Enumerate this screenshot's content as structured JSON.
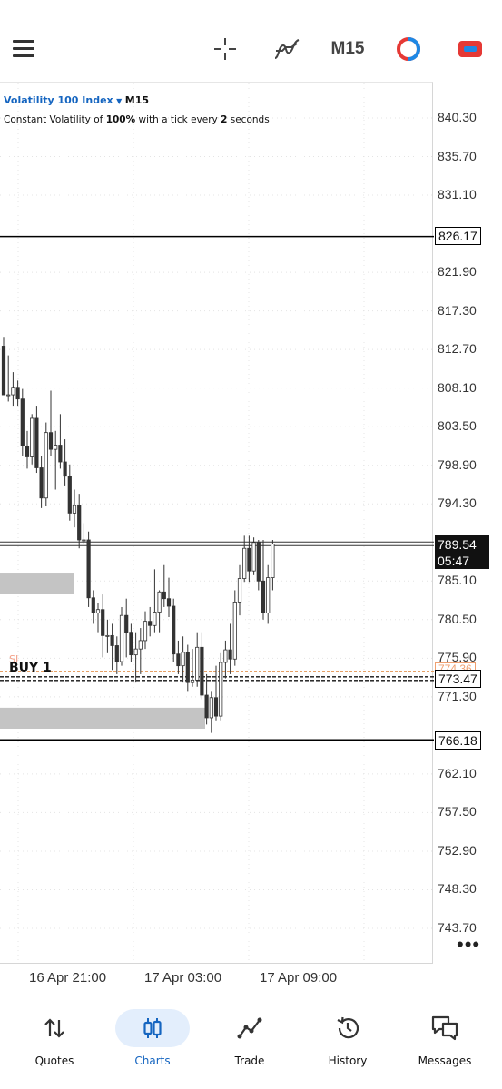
{
  "toolbar": {
    "timeframe": "M15",
    "icons": [
      "menu-icon",
      "crosshair-icon",
      "indicators-icon",
      "one-click-trading-icon",
      "toggle-icon"
    ]
  },
  "chart": {
    "symbol": "Volatility 100 Index",
    "symbol_arrow": "▼",
    "timeframe": "M15",
    "description_prefix": "Constant Volatility of ",
    "description_pct": "100%",
    "description_mid": " with a tick every ",
    "description_num": "2",
    "description_suffix": " seconds",
    "price_labels": [
      "840.30",
      "835.70",
      "831.10",
      "821.90",
      "817.30",
      "812.70",
      "808.10",
      "803.50",
      "798.90",
      "794.30",
      "785.10",
      "780.50",
      "775.90",
      "771.30",
      "762.10",
      "757.50",
      "752.90",
      "748.30",
      "743.70"
    ],
    "level_high": "826.17",
    "level_low": "766.18",
    "current_price": "789.54",
    "countdown": "05:47",
    "position_price": "773.47",
    "sl_price": "774.36",
    "position_label": "BUY 1",
    "sl_label": "SL",
    "time_labels": [
      "16 Apr 21:00",
      "17 Apr 03:00",
      "17 Apr 09:00"
    ],
    "more": "•••"
  },
  "colors": {
    "accent": "#1565c0",
    "bull_body": "#ffffff",
    "bear_body": "#333333",
    "sl_line": "#e6a065",
    "zone": "#c4c4c4"
  },
  "chart_data": {
    "type": "candlestick",
    "ylim": [
      741.4,
      842.6
    ],
    "candles": [
      {
        "o": 813.1,
        "h": 814.2,
        "l": 807.3,
        "c": 807.3
      },
      {
        "o": 807.3,
        "h": 812.0,
        "l": 806.5,
        "c": 807.3
      },
      {
        "o": 807.3,
        "h": 810.0,
        "l": 806.0,
        "c": 808.2
      },
      {
        "o": 808.2,
        "h": 809.0,
        "l": 806.0,
        "c": 806.8
      },
      {
        "o": 806.8,
        "h": 808.0,
        "l": 800.0,
        "c": 801.2
      },
      {
        "o": 801.2,
        "h": 803.0,
        "l": 798.5,
        "c": 799.9
      },
      {
        "o": 799.9,
        "h": 805.0,
        "l": 799.0,
        "c": 804.5
      },
      {
        "o": 804.5,
        "h": 806.0,
        "l": 798.0,
        "c": 798.6
      },
      {
        "o": 798.6,
        "h": 800.0,
        "l": 793.8,
        "c": 795.0
      },
      {
        "o": 795.0,
        "h": 804.0,
        "l": 794.0,
        "c": 802.8
      },
      {
        "o": 802.8,
        "h": 807.8,
        "l": 800.0,
        "c": 800.8
      },
      {
        "o": 800.8,
        "h": 803.0,
        "l": 796.0,
        "c": 801.3
      },
      {
        "o": 801.3,
        "h": 805.0,
        "l": 798.5,
        "c": 799.3
      },
      {
        "o": 799.3,
        "h": 802.0,
        "l": 796.5,
        "c": 797.6
      },
      {
        "o": 797.6,
        "h": 799.0,
        "l": 792.3,
        "c": 793.2
      },
      {
        "o": 793.2,
        "h": 796.0,
        "l": 791.5,
        "c": 794.1
      },
      {
        "o": 794.1,
        "h": 795.5,
        "l": 789.0,
        "c": 790.0
      },
      {
        "o": 790.0,
        "h": 792.0,
        "l": 789.5,
        "c": 790.0
      },
      {
        "o": 790.0,
        "h": 791.0,
        "l": 782.0,
        "c": 783.1
      },
      {
        "o": 783.1,
        "h": 784.0,
        "l": 780.0,
        "c": 781.3
      },
      {
        "o": 781.3,
        "h": 782.5,
        "l": 779.0,
        "c": 781.7
      },
      {
        "o": 781.7,
        "h": 783.5,
        "l": 776.0,
        "c": 778.6
      },
      {
        "o": 778.6,
        "h": 780.5,
        "l": 776.5,
        "c": 778.6
      },
      {
        "o": 778.6,
        "h": 780.0,
        "l": 774.5,
        "c": 777.4
      },
      {
        "o": 777.4,
        "h": 778.5,
        "l": 774.0,
        "c": 775.5
      },
      {
        "o": 775.5,
        "h": 782.0,
        "l": 775.0,
        "c": 781.0
      },
      {
        "o": 781.0,
        "h": 783.0,
        "l": 776.0,
        "c": 779.0
      },
      {
        "o": 779.0,
        "h": 780.0,
        "l": 775.5,
        "c": 776.3
      },
      {
        "o": 776.3,
        "h": 779.0,
        "l": 773.0,
        "c": 777.0
      },
      {
        "o": 777.0,
        "h": 779.5,
        "l": 774.0,
        "c": 778.0
      },
      {
        "o": 778.0,
        "h": 781.5,
        "l": 777.0,
        "c": 780.3
      },
      {
        "o": 780.3,
        "h": 782.0,
        "l": 778.5,
        "c": 779.8
      },
      {
        "o": 779.8,
        "h": 786.5,
        "l": 779.0,
        "c": 781.4
      },
      {
        "o": 781.4,
        "h": 784.0,
        "l": 779.0,
        "c": 783.8
      },
      {
        "o": 783.8,
        "h": 787.0,
        "l": 782.0,
        "c": 783.0
      },
      {
        "o": 783.0,
        "h": 785.5,
        "l": 780.8,
        "c": 782.1
      },
      {
        "o": 782.1,
        "h": 783.0,
        "l": 775.5,
        "c": 776.4
      },
      {
        "o": 776.4,
        "h": 778.0,
        "l": 774.0,
        "c": 775.0
      },
      {
        "o": 775.0,
        "h": 778.5,
        "l": 773.0,
        "c": 776.6
      },
      {
        "o": 776.6,
        "h": 777.5,
        "l": 772.0,
        "c": 773.0
      },
      {
        "o": 773.0,
        "h": 777.0,
        "l": 772.5,
        "c": 773.3
      },
      {
        "o": 773.3,
        "h": 779.0,
        "l": 772.5,
        "c": 777.2
      },
      {
        "o": 777.2,
        "h": 779.0,
        "l": 771.0,
        "c": 771.5
      },
      {
        "o": 771.5,
        "h": 774.0,
        "l": 768.0,
        "c": 768.8
      },
      {
        "o": 768.8,
        "h": 772.0,
        "l": 767.0,
        "c": 771.2
      },
      {
        "o": 771.2,
        "h": 775.0,
        "l": 768.5,
        "c": 769.0
      },
      {
        "o": 769.0,
        "h": 776.5,
        "l": 768.5,
        "c": 775.4
      },
      {
        "o": 775.4,
        "h": 778.0,
        "l": 773.5,
        "c": 776.9
      },
      {
        "o": 776.9,
        "h": 780.0,
        "l": 774.0,
        "c": 775.8
      },
      {
        "o": 775.8,
        "h": 784.0,
        "l": 775.0,
        "c": 782.6
      },
      {
        "o": 782.6,
        "h": 787.0,
        "l": 781.0,
        "c": 785.4
      },
      {
        "o": 785.4,
        "h": 790.5,
        "l": 785.0,
        "c": 789.0
      },
      {
        "o": 789.0,
        "h": 790.5,
        "l": 785.0,
        "c": 786.3
      },
      {
        "o": 786.3,
        "h": 790.3,
        "l": 785.8,
        "c": 789.7
      },
      {
        "o": 789.7,
        "h": 790.0,
        "l": 784.0,
        "c": 785.1
      },
      {
        "o": 785.1,
        "h": 790.0,
        "l": 780.5,
        "c": 781.3
      },
      {
        "o": 781.3,
        "h": 787.0,
        "l": 780.0,
        "c": 785.5
      },
      {
        "o": 785.5,
        "h": 790.0,
        "l": 784.0,
        "c": 789.5
      }
    ],
    "levels": [
      {
        "label": "resistance",
        "value": 826.17
      },
      {
        "label": "support",
        "value": 766.18
      },
      {
        "label": "current",
        "value": 789.54
      },
      {
        "label": "position",
        "value": 773.47
      },
      {
        "label": "sl",
        "value": 774.36
      }
    ],
    "zones": [
      {
        "from": 783.6,
        "to": 786.1
      },
      {
        "from": 767.5,
        "to": 770.0
      }
    ]
  },
  "nav": {
    "items": [
      {
        "label": "Quotes",
        "icon": "quotes-icon"
      },
      {
        "label": "Charts",
        "icon": "charts-icon"
      },
      {
        "label": "Trade",
        "icon": "trade-icon"
      },
      {
        "label": "History",
        "icon": "history-icon"
      },
      {
        "label": "Messages",
        "icon": "messages-icon"
      }
    ],
    "active": "Charts"
  }
}
